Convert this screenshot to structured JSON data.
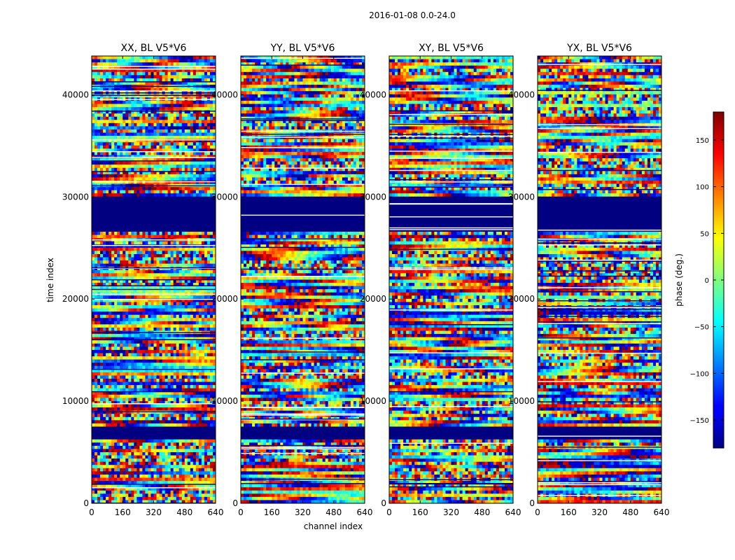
{
  "figure": {
    "suptitle": "2016-01-08 0.0-24.0"
  },
  "chart_data": {
    "type": "heatmap",
    "x_label": "channel index",
    "y_label": "time index",
    "x_ticks": [
      0,
      160,
      320,
      480,
      640
    ],
    "x_tick_labels": [
      "0",
      "160",
      "320",
      "480",
      "640"
    ],
    "y_ticks": [
      0,
      10000,
      20000,
      30000,
      40000
    ],
    "y_tick_labels": [
      "0",
      "10000",
      "20000",
      "30000",
      "40000"
    ],
    "xlim": [
      0,
      640
    ],
    "ylim": [
      0,
      43800
    ],
    "colorscale": "jet",
    "colorbar": {
      "label": "phase (deg.)",
      "range": [
        -180,
        180
      ],
      "ticks": [
        150,
        100,
        50,
        0,
        -50,
        -100,
        -150
      ],
      "tick_labels": [
        "150",
        "100",
        "50",
        "0",
        "−50",
        "−100",
        "−150"
      ]
    },
    "panels": [
      {
        "title": "XX, BL V5*V6"
      },
      {
        "title": "YY, BL V5*V6"
      },
      {
        "title": "XY, BL V5*V6"
      },
      {
        "title": "YX, BL V5*V6"
      }
    ],
    "constant_phase_regions": [
      {
        "time_from": 26500,
        "time_to": 30000,
        "phase": -180
      },
      {
        "time_from": 6300,
        "time_to": 7500,
        "phase": -180
      }
    ]
  }
}
